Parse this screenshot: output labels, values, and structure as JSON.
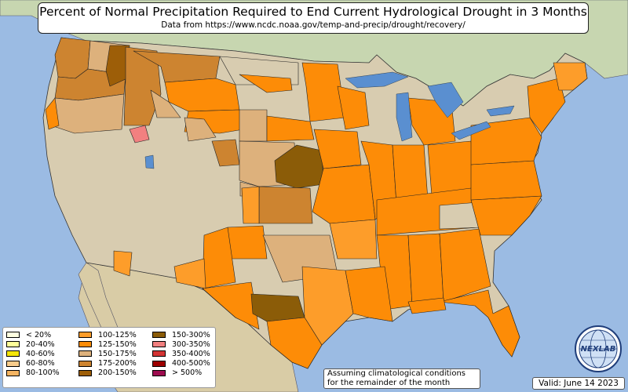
{
  "title": {
    "main": "Percent of Normal Precipitation Required to End Current Hydrological Drought in 3 Months",
    "source": "Data from https://www.ncdc.noaa.gov/temp-and-precip/drought/recovery/"
  },
  "legend": {
    "items": [
      {
        "label": "< 20%",
        "color": "#ffffe0"
      },
      {
        "label": "20-40%",
        "color": "#ffff99"
      },
      {
        "label": "40-60%",
        "color": "#f5e60a"
      },
      {
        "label": "60-80%",
        "color": "#f8cc8c"
      },
      {
        "label": "80-100%",
        "color": "#f4b462"
      },
      {
        "label": "100-125%",
        "color": "#fd9d2a"
      },
      {
        "label": "125-150%",
        "color": "#fd8c07"
      },
      {
        "label": "150-175%",
        "color": "#ddb17c"
      },
      {
        "label": "175-200%",
        "color": "#cd8430"
      },
      {
        "label": "200-150%",
        "color": "#9d5e08"
      },
      {
        "label": "150-300%",
        "color": "#8b5c08"
      },
      {
        "label": "300-350%",
        "color": "#f28080"
      },
      {
        "label": "350-400%",
        "color": "#d33434"
      },
      {
        "label": "400-500%",
        "color": "#9d0000"
      },
      {
        "label": "> 500%",
        "color": "#9d0c4f"
      }
    ]
  },
  "note": {
    "line1": "Assuming climatological conditions",
    "line2": "for the remainder of the month"
  },
  "valid_date": "Valid: June 14 2023",
  "logo": {
    "text": "NEXLAB",
    "icon": "globe-logo-icon"
  },
  "colors": {
    "ocean": "#9bbbe3",
    "land": "#d8ccb0",
    "canada": "#c7d6b0",
    "mexico": "#d9cca6",
    "lake": "#5a8fd0"
  }
}
